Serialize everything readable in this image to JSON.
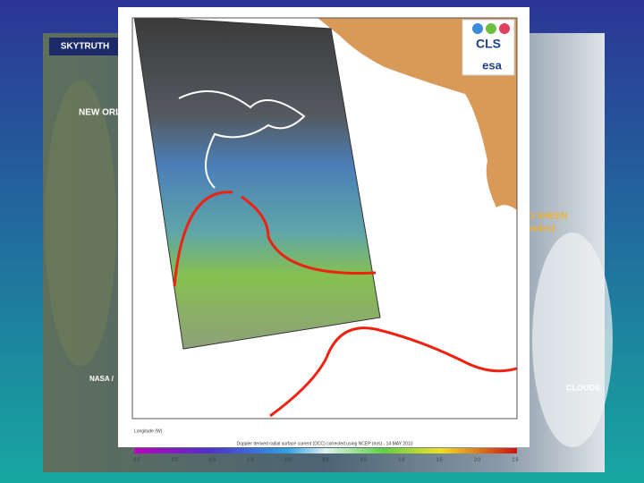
{
  "left_image": {
    "banner": "SKYTRUTH",
    "labels": [
      "NEW ORL",
      "D SHEEN",
      "miles)",
      "CLOUDS",
      "NASA /"
    ]
  },
  "map": {
    "logos": [
      "CLS",
      "esa"
    ],
    "x_axis_title": "Longitude (W)",
    "caption": "Doppler derived radial surface current (DCC) corrected using NCEP (m/s) - 14 MAY 2010",
    "colorbar_ticks": [
      "-2.5",
      "-2.0",
      "-1.5",
      "-1.0",
      "-0.5",
      "0.0",
      "0.5",
      "1.0",
      "1.5",
      "2.0",
      "2.5"
    ]
  }
}
